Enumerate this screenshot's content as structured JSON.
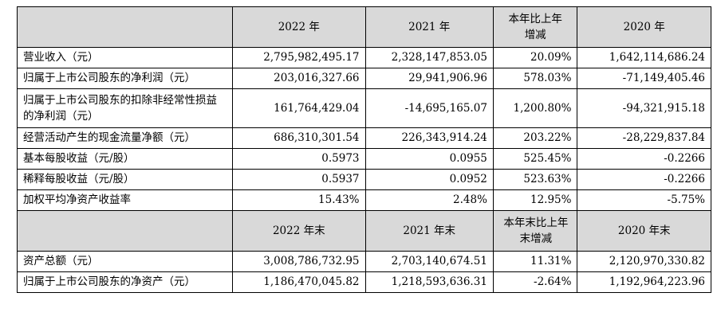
{
  "header1": [
    "",
    "2022 年",
    "2021 年",
    "本年比上年增减",
    "2020 年"
  ],
  "rows1": [
    [
      "营业收入（元）",
      "2,795,982,495.17",
      "2,328,147,853.05",
      "20.09%",
      "1,642,114,686.24"
    ],
    [
      "归属于上市公司股东的净利润（元）",
      "203,016,327.66",
      "29,941,906.96",
      "578.03%",
      "-71,149,405.46"
    ],
    [
      "归属于上市公司股东的扣除非经常性损益的净利润（元）",
      "161,764,429.04",
      "-14,695,165.07",
      "1,200.80%",
      "-94,321,915.18"
    ],
    [
      "经营活动产生的现金流量净额（元）",
      "686,310,301.54",
      "226,343,914.24",
      "203.22%",
      "-28,229,837.84"
    ],
    [
      "基本每股收益（元/股）",
      "0.5973",
      "0.0955",
      "525.45%",
      "-0.2266"
    ],
    [
      "稀释每股收益（元/股）",
      "0.5937",
      "0.0952",
      "523.63%",
      "-0.2266"
    ],
    [
      "加权平均净资产收益率",
      "15.43%",
      "2.48%",
      "12.95%",
      "-5.75%"
    ]
  ],
  "header2": [
    "",
    "2022 年末",
    "2021 年末",
    "本年末比上年末增减",
    "2020 年末"
  ],
  "rows2": [
    [
      "资产总额（元）",
      "3,008,786,732.95",
      "2,703,140,674.51",
      "11.31%",
      "2,120,970,330.82"
    ],
    [
      "归属于上市公司股东的净资产（元）",
      "1,186,470,045.82",
      "1,218,593,636.31",
      "-2.64%",
      "1,192,964,223.96"
    ]
  ]
}
